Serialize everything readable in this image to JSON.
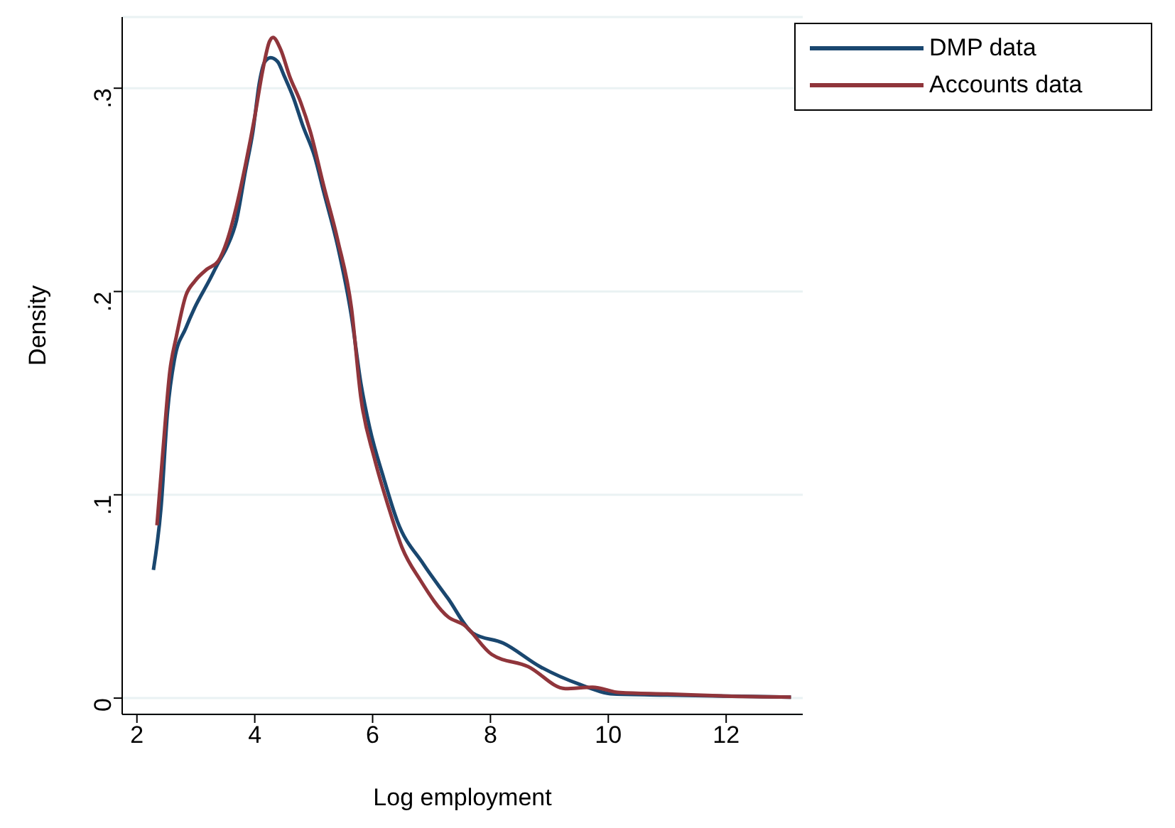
{
  "chart_data": {
    "type": "line",
    "xlabel": "Log employment",
    "ylabel": "Density",
    "xlim": [
      1.75,
      13.3
    ],
    "xticks": [
      2,
      4,
      6,
      8,
      10,
      12
    ],
    "ylim": [
      -0.008,
      0.335
    ],
    "yticks": [
      0,
      {
        "value": 0.1,
        "label": ".1"
      },
      {
        "value": 0.2,
        "label": ".2"
      },
      {
        "value": 0.3,
        "label": ".3"
      }
    ],
    "grid": "y",
    "legend": "top right",
    "marker": "none",
    "line_style": "solid",
    "series": [
      {
        "name": "DMP data",
        "color": "#1a476f",
        "x": [
          2.28,
          2.41,
          2.52,
          2.64,
          2.83,
          2.98,
          3.22,
          3.38,
          3.53,
          3.69,
          3.84,
          3.97,
          4.08,
          4.17,
          4.27,
          4.39,
          4.5,
          4.66,
          4.81,
          5.02,
          5.17,
          5.41,
          5.64,
          5.8,
          5.95,
          6.19,
          6.42,
          6.86,
          7.28,
          7.7,
          8.22,
          8.84,
          9.52,
          10.09,
          11,
          12,
          13.1
        ],
        "values": [
          0.063,
          0.094,
          0.141,
          0.167,
          0.182,
          0.192,
          0.205,
          0.214,
          0.222,
          0.235,
          0.259,
          0.279,
          0.303,
          0.313,
          0.315,
          0.313,
          0.306,
          0.295,
          0.282,
          0.266,
          0.249,
          0.222,
          0.188,
          0.155,
          0.133,
          0.108,
          0.087,
          0.066,
          0.049,
          0.032,
          0.027,
          0.0155,
          0.0067,
          0.002,
          0.0015,
          0.001,
          0.0005
        ]
      },
      {
        "name": "Accounts data",
        "color": "#90353b",
        "x": [
          2.34,
          2.44,
          2.56,
          2.67,
          2.83,
          2.98,
          3.19,
          3.38,
          3.53,
          3.69,
          3.84,
          4.0,
          4.13,
          4.25,
          4.31,
          4.44,
          4.59,
          4.78,
          4.94,
          5.17,
          5.41,
          5.64,
          5.8,
          6.03,
          6.27,
          6.5,
          6.81,
          7.28,
          7.55,
          8.02,
          8.64,
          9.27,
          9.73,
          10.2,
          11,
          12,
          13.1
        ],
        "values": [
          0.085,
          0.121,
          0.161,
          0.178,
          0.198,
          0.205,
          0.211,
          0.215,
          0.225,
          0.242,
          0.262,
          0.286,
          0.308,
          0.323,
          0.325,
          0.319,
          0.306,
          0.293,
          0.279,
          0.252,
          0.225,
          0.192,
          0.148,
          0.118,
          0.094,
          0.074,
          0.058,
          0.04,
          0.036,
          0.0215,
          0.0155,
          0.0047,
          0.0054,
          0.0027,
          0.002,
          0.001,
          0.0005
        ]
      }
    ]
  }
}
